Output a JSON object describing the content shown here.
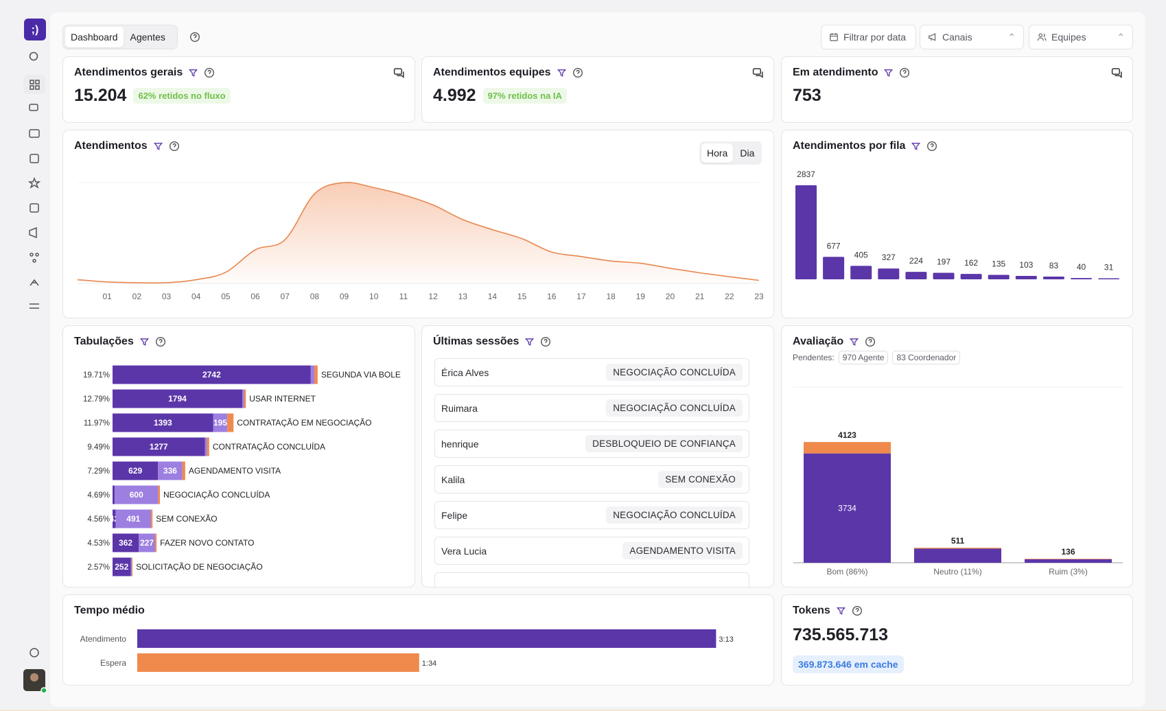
{
  "nav": {
    "tabs": [
      "Dashboard",
      "Agentes"
    ]
  },
  "filters": [
    "Filtrar por data",
    "Canais",
    "Equipes"
  ],
  "kpis": [
    {
      "title": "Atendimentos gerais",
      "value": "15.204",
      "badge": "62% retidos no fluxo"
    },
    {
      "title": "Atendimentos equipes",
      "value": "4.992",
      "badge": "97% retidos na IA"
    },
    {
      "title": "Em atendimento",
      "value": "753"
    }
  ],
  "chart_data": [
    {
      "type": "area",
      "title": "Atendimentos",
      "toggle": [
        "Hora",
        "Dia"
      ],
      "categories": [
        null,
        "01",
        "02",
        "03",
        "04",
        "05",
        "06",
        "07",
        "08",
        "09",
        "10",
        "11",
        "12",
        "13",
        "14",
        "15",
        "16",
        "17",
        "18",
        "19",
        "20",
        "21",
        "22",
        "23"
      ],
      "values": [
        67,
        27,
        13,
        13,
        67,
        200,
        600,
        780,
        1600,
        1800,
        1710,
        1580,
        1400,
        1140,
        960,
        800,
        560,
        480,
        400,
        360,
        270,
        190,
        120,
        55
      ],
      "ylim": [
        0,
        1800
      ],
      "color": "#e8874f"
    },
    {
      "type": "bar",
      "title": "Atendimentos por fila",
      "categories": [
        null,
        null,
        null,
        null,
        null,
        null,
        null,
        null,
        null,
        null,
        null,
        null
      ],
      "values": [
        2837,
        677,
        405,
        327,
        224,
        197,
        162,
        135,
        103,
        83,
        40,
        31
      ],
      "ylim": [
        0,
        3000
      ],
      "color": "#5b36a8"
    },
    {
      "type": "stacked-hbar",
      "title": "Tabulações",
      "categories": [
        "SEGUNDA VIA BOLE",
        "USAR INTERNET",
        "CONTRATAÇÃO EM NEGOCIAÇÃO",
        "CONTRATAÇÃO CONCLUÍDA",
        "AGENDAMENTO VISITA",
        "NEGOCIAÇÃO CONCLUÍDA",
        "SEM CONEXÃO",
        "FAZER NOVO CONTATO",
        "SOLICITAÇÃO DE NEGOCIAÇÃO"
      ],
      "share_labels": [
        "19.71%",
        "12.79%",
        "11.97%",
        "9.49%",
        "7.29%",
        "4.69%",
        "4.56%",
        "4.53%",
        "2.57%"
      ],
      "series": [
        {
          "color": "#5b36a8",
          "values": [
            2742,
            1794,
            1393,
            1277,
            629,
            30,
            42,
            362,
            252
          ]
        },
        {
          "color": "#9c7fe0",
          "values": [
            50,
            25,
            195,
            30,
            336,
            600,
            491,
            227,
            15
          ]
        },
        {
          "color": "#ef8a4c",
          "values": [
            45,
            25,
            85,
            30,
            40,
            25,
            20,
            20,
            10
          ]
        }
      ],
      "xlim": [
        0,
        3000
      ]
    },
    {
      "type": "stacked-bar",
      "title": "Avaliação",
      "pending_label": "Pendentes:",
      "pending": [
        "970 Agente",
        "83 Coordenador"
      ],
      "categories": [
        "Bom (86%)",
        "Neutro (11%)",
        "Ruim (3%)"
      ],
      "series": [
        {
          "color": "#5b36a8",
          "values": [
            3734,
            480,
            120
          ]
        },
        {
          "color": "#ef8a4c",
          "values": [
            389,
            31,
            16
          ]
        }
      ],
      "totals": [
        4123,
        511,
        136
      ],
      "ylim": [
        0,
        6000
      ]
    },
    {
      "type": "hbar",
      "title": "Tempo médio",
      "categories": [
        "Atendimento",
        "Espera"
      ],
      "values": [
        193,
        94
      ],
      "value_labels": [
        "3:13",
        "1:34"
      ],
      "colors": [
        "#5b36a8",
        "#ef8a4c"
      ],
      "xlim": [
        0,
        200
      ]
    }
  ],
  "sessions": {
    "title": "Últimas sessões",
    "rows": [
      {
        "name": "Érica Alves",
        "tag": "NEGOCIAÇÃO CONCLUÍDA"
      },
      {
        "name": "Ruimara",
        "tag": "NEGOCIAÇÃO CONCLUÍDA"
      },
      {
        "name": "henrique",
        "tag": "DESBLOQUEIO DE CONFIANÇA"
      },
      {
        "name": "Kalila",
        "tag": "SEM CONEXÃO"
      },
      {
        "name": "Felipe",
        "tag": "NEGOCIAÇÃO CONCLUÍDA"
      },
      {
        "name": "Vera Lucia",
        "tag": "AGENDAMENTO VISITA"
      }
    ]
  },
  "tokens": {
    "title": "Tokens",
    "value": "735.565.713",
    "cache": "369.873.646 em cache"
  }
}
